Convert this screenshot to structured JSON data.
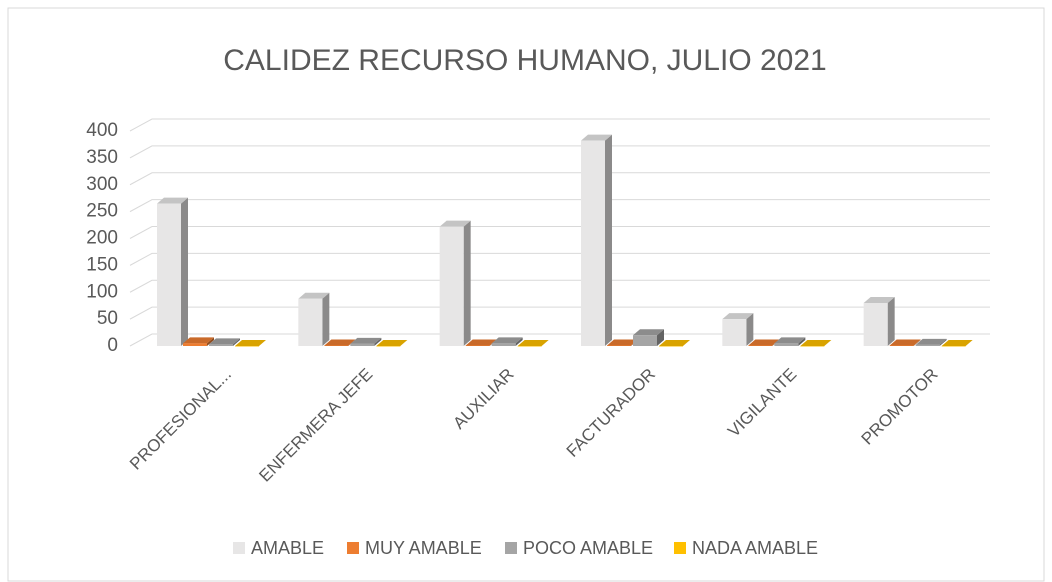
{
  "chart_data": {
    "type": "bar3d",
    "title": "CALIDEZ RECURSO HUMANO,  JULIO 2021",
    "categories": [
      "PROFESIONAL...",
      "ENFERMERA JEFE",
      "AUXILIAR",
      "FACTURADOR",
      "VIGILANTE",
      "PROMOTOR"
    ],
    "series": [
      {
        "name": "AMABLE",
        "color": "#e7e6e6",
        "values": [
          265,
          88,
          222,
          382,
          50,
          80
        ]
      },
      {
        "name": "MUY AMABLE",
        "color": "#ed7d31",
        "values": [
          5,
          1,
          1,
          1,
          1,
          1
        ]
      },
      {
        "name": "POCO AMABLE",
        "color": "#a5a5a5",
        "values": [
          3,
          4,
          5,
          20,
          5,
          2
        ]
      },
      {
        "name": "NADA AMABLE",
        "color": "#ffc000",
        "values": [
          0,
          0,
          0,
          0,
          0,
          0
        ]
      }
    ],
    "ylim": [
      0,
      400
    ],
    "yticks": [
      0,
      50,
      100,
      150,
      200,
      250,
      300,
      350,
      400
    ],
    "grid": true,
    "legend": "bottom"
  }
}
